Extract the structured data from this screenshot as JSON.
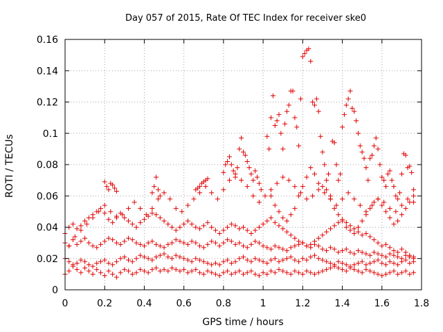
{
  "chart_data": {
    "type": "scatter",
    "title": "Day 057 of 2015, Rate Of TEC Index for receiver ske0",
    "xlabel": "GPS time / hours",
    "ylabel": "ROTI / TECUs",
    "xlim": [
      0,
      1.8
    ],
    "ylim": [
      0,
      0.16
    ],
    "x_ticks": [
      0,
      0.2,
      0.4,
      0.6,
      0.8,
      1,
      1.2,
      1.4,
      1.6,
      1.8
    ],
    "x_tick_labels": [
      "0",
      "0.2",
      "0.4",
      "0.6",
      "0.8",
      "1",
      "1.2",
      "1.4",
      "1.6",
      "1.8"
    ],
    "y_ticks": [
      0,
      0.02,
      0.04,
      0.06,
      0.08,
      0.1,
      0.12,
      0.14,
      0.16
    ],
    "y_tick_labels": [
      "0",
      "0.02",
      "0.04",
      "0.06",
      "0.08",
      "0.1",
      "0.12",
      "0.14",
      "0.16"
    ],
    "grid": true,
    "marker": "plus",
    "color": "#e00000",
    "series": [
      {
        "x": [
          0.0,
          0.02,
          0.04,
          0.06,
          0.08,
          0.1,
          0.12,
          0.14,
          0.16,
          0.18,
          0.2,
          0.22,
          0.24,
          0.26,
          0.28,
          0.3,
          0.32,
          0.34,
          0.36,
          0.38,
          0.4,
          0.42,
          0.44,
          0.46,
          0.48,
          0.5,
          0.52,
          0.54,
          0.56,
          0.58,
          0.6,
          0.62,
          0.64,
          0.66,
          0.68,
          0.7,
          0.72,
          0.74,
          0.76,
          0.78,
          0.8,
          0.82,
          0.84,
          0.86,
          0.88,
          0.9,
          0.92,
          0.94,
          0.96,
          0.98,
          1.0,
          1.02,
          1.04,
          1.06,
          1.08,
          1.1,
          1.12,
          1.14,
          1.16,
          1.18,
          1.2,
          1.22,
          1.24,
          1.26,
          1.28,
          1.3,
          1.32,
          1.34,
          1.36,
          1.38,
          1.4,
          1.42,
          1.44,
          1.46,
          1.48,
          1.5,
          1.52,
          1.54,
          1.56,
          1.58,
          1.6,
          1.62,
          1.64,
          1.66,
          1.68,
          1.7,
          1.72,
          1.74,
          1.76
        ],
        "y": [
          0.01,
          0.012,
          0.015,
          0.013,
          0.011,
          0.014,
          0.012,
          0.01,
          0.013,
          0.011,
          0.009,
          0.012,
          0.01,
          0.008,
          0.011,
          0.013,
          0.012,
          0.01,
          0.011,
          0.013,
          0.012,
          0.011,
          0.013,
          0.014,
          0.012,
          0.013,
          0.012,
          0.014,
          0.013,
          0.012,
          0.013,
          0.011,
          0.012,
          0.013,
          0.011,
          0.01,
          0.012,
          0.011,
          0.01,
          0.009,
          0.011,
          0.012,
          0.01,
          0.011,
          0.012,
          0.01,
          0.011,
          0.012,
          0.01,
          0.009,
          0.011,
          0.01,
          0.012,
          0.011,
          0.013,
          0.012,
          0.011,
          0.01,
          0.012,
          0.011,
          0.01,
          0.012,
          0.011,
          0.01,
          0.011,
          0.012,
          0.013,
          0.014,
          0.015,
          0.014,
          0.013,
          0.012,
          0.014,
          0.013,
          0.012,
          0.011,
          0.013,
          0.012,
          0.011,
          0.01,
          0.009,
          0.01,
          0.011,
          0.012,
          0.01,
          0.011,
          0.012,
          0.01,
          0.011
        ]
      },
      {
        "x": [
          0.0,
          0.02,
          0.04,
          0.06,
          0.08,
          0.1,
          0.12,
          0.14,
          0.16,
          0.18,
          0.2,
          0.22,
          0.24,
          0.26,
          0.28,
          0.3,
          0.32,
          0.34,
          0.36,
          0.38,
          0.4,
          0.42,
          0.44,
          0.46,
          0.48,
          0.5,
          0.52,
          0.54,
          0.56,
          0.58,
          0.6,
          0.62,
          0.64,
          0.66,
          0.68,
          0.7,
          0.72,
          0.74,
          0.76,
          0.78,
          0.8,
          0.82,
          0.84,
          0.86,
          0.88,
          0.9,
          0.92,
          0.94,
          0.96,
          0.98,
          1.0,
          1.02,
          1.04,
          1.06,
          1.08,
          1.1,
          1.12,
          1.14,
          1.16,
          1.18,
          1.2,
          1.22,
          1.24,
          1.26,
          1.28,
          1.3,
          1.32,
          1.34,
          1.36,
          1.38,
          1.4,
          1.42,
          1.44,
          1.46,
          1.48,
          1.5,
          1.52,
          1.54,
          1.56,
          1.58,
          1.6,
          1.62,
          1.64,
          1.66,
          1.68,
          1.7,
          1.72,
          1.74,
          1.76
        ],
        "y": [
          0.02,
          0.018,
          0.016,
          0.017,
          0.019,
          0.018,
          0.016,
          0.015,
          0.017,
          0.018,
          0.019,
          0.017,
          0.016,
          0.018,
          0.02,
          0.021,
          0.019,
          0.018,
          0.02,
          0.022,
          0.021,
          0.02,
          0.019,
          0.021,
          0.022,
          0.023,
          0.021,
          0.02,
          0.022,
          0.021,
          0.02,
          0.019,
          0.018,
          0.02,
          0.019,
          0.018,
          0.017,
          0.016,
          0.017,
          0.016,
          0.018,
          0.019,
          0.017,
          0.018,
          0.02,
          0.021,
          0.019,
          0.018,
          0.02,
          0.019,
          0.018,
          0.017,
          0.019,
          0.02,
          0.018,
          0.019,
          0.02,
          0.021,
          0.019,
          0.018,
          0.02,
          0.019,
          0.021,
          0.022,
          0.02,
          0.019,
          0.018,
          0.017,
          0.016,
          0.018,
          0.017,
          0.016,
          0.015,
          0.016,
          0.017,
          0.018,
          0.016,
          0.017,
          0.018,
          0.019,
          0.017,
          0.016,
          0.018,
          0.017,
          0.016,
          0.018,
          0.019,
          0.017,
          0.018
        ]
      },
      {
        "x": [
          0.0,
          0.02,
          0.04,
          0.06,
          0.08,
          0.1,
          0.12,
          0.14,
          0.16,
          0.18,
          0.2,
          0.22,
          0.24,
          0.26,
          0.28,
          0.3,
          0.32,
          0.34,
          0.36,
          0.38,
          0.4,
          0.42,
          0.44,
          0.46,
          0.48,
          0.5,
          0.52,
          0.54,
          0.56,
          0.58,
          0.6,
          0.62,
          0.64,
          0.66,
          0.68,
          0.7,
          0.72,
          0.74,
          0.76,
          0.78,
          0.8,
          0.82,
          0.84,
          0.86,
          0.88,
          0.9,
          0.92,
          0.94,
          0.96,
          0.98,
          1.0,
          1.02,
          1.04,
          1.06,
          1.08,
          1.1,
          1.12,
          1.14,
          1.16,
          1.18,
          1.2,
          1.22,
          1.24,
          1.26,
          1.28,
          1.3,
          1.32,
          1.34,
          1.36,
          1.38,
          1.4,
          1.42,
          1.44,
          1.46,
          1.48,
          1.5,
          1.52,
          1.54,
          1.56,
          1.58,
          1.6,
          1.62,
          1.64,
          1.66,
          1.68,
          1.7,
          1.72,
          1.74,
          1.76
        ],
        "y": [
          0.03,
          0.028,
          0.032,
          0.029,
          0.031,
          0.033,
          0.03,
          0.028,
          0.027,
          0.029,
          0.031,
          0.033,
          0.032,
          0.03,
          0.029,
          0.031,
          0.033,
          0.032,
          0.03,
          0.029,
          0.028,
          0.03,
          0.031,
          0.029,
          0.028,
          0.027,
          0.029,
          0.03,
          0.032,
          0.031,
          0.03,
          0.029,
          0.031,
          0.03,
          0.028,
          0.027,
          0.029,
          0.031,
          0.03,
          0.028,
          0.03,
          0.032,
          0.031,
          0.029,
          0.03,
          0.028,
          0.027,
          0.029,
          0.031,
          0.03,
          0.028,
          0.027,
          0.026,
          0.028,
          0.027,
          0.026,
          0.025,
          0.027,
          0.028,
          0.029,
          0.03,
          0.028,
          0.027,
          0.029,
          0.028,
          0.026,
          0.025,
          0.027,
          0.026,
          0.024,
          0.025,
          0.026,
          0.024,
          0.023,
          0.025,
          0.024,
          0.023,
          0.022,
          0.024,
          0.023,
          0.022,
          0.021,
          0.023,
          0.022,
          0.021,
          0.02,
          0.022,
          0.021,
          0.02
        ]
      },
      {
        "x": [
          0.0,
          0.02,
          0.04,
          0.06,
          0.08,
          0.1,
          0.12,
          0.14,
          0.16,
          0.18,
          0.2,
          0.22,
          0.24,
          0.26,
          0.28,
          0.3,
          0.32,
          0.34,
          0.36,
          0.38,
          0.4,
          0.42,
          0.44,
          0.46,
          0.48,
          0.5,
          0.52,
          0.54,
          0.56,
          0.58,
          0.6,
          0.62,
          0.64,
          0.66,
          0.68,
          0.7,
          0.72,
          0.74,
          0.76,
          0.78,
          0.8,
          0.82,
          0.84,
          0.86,
          0.88,
          0.9,
          0.92,
          0.94,
          0.96,
          0.98,
          1.0,
          1.02,
          1.04,
          1.06,
          1.08,
          1.1,
          1.12,
          1.14,
          1.16,
          1.18,
          1.2,
          1.22,
          1.24,
          1.26,
          1.28,
          1.3,
          1.32,
          1.34,
          1.36,
          1.38,
          1.4,
          1.42,
          1.44,
          1.46,
          1.48,
          1.5,
          1.52,
          1.54,
          1.56,
          1.58,
          1.6,
          1.62,
          1.64,
          1.66,
          1.68,
          1.7,
          1.72,
          1.74,
          1.76
        ],
        "y": [
          0.036,
          0.04,
          0.042,
          0.039,
          0.041,
          0.044,
          0.046,
          0.048,
          0.05,
          0.052,
          0.049,
          0.045,
          0.043,
          0.047,
          0.049,
          0.046,
          0.044,
          0.042,
          0.04,
          0.043,
          0.045,
          0.047,
          0.049,
          0.048,
          0.046,
          0.044,
          0.042,
          0.04,
          0.038,
          0.04,
          0.042,
          0.044,
          0.042,
          0.04,
          0.039,
          0.041,
          0.043,
          0.04,
          0.038,
          0.036,
          0.038,
          0.04,
          0.042,
          0.041,
          0.039,
          0.04,
          0.038,
          0.036,
          0.038,
          0.04,
          0.042,
          0.044,
          0.046,
          0.043,
          0.041,
          0.039,
          0.037,
          0.035,
          0.033,
          0.031,
          0.03,
          0.028,
          0.029,
          0.031,
          0.033,
          0.035,
          0.037,
          0.039,
          0.041,
          0.043,
          0.045,
          0.043,
          0.041,
          0.039,
          0.037,
          0.035,
          0.036,
          0.034,
          0.032,
          0.03,
          0.028,
          0.029,
          0.027,
          0.025,
          0.024,
          0.026,
          0.024,
          0.022,
          0.021
        ]
      },
      {
        "x": [
          0.02,
          0.05,
          0.08,
          0.11,
          0.14,
          0.17,
          0.2,
          0.23,
          0.26,
          0.29,
          0.32,
          0.35,
          0.38,
          0.41,
          0.44,
          0.47,
          0.5,
          0.53,
          0.56,
          0.59,
          0.62,
          0.65,
          0.68,
          0.71,
          0.74,
          0.77,
          0.8,
          0.83,
          0.86,
          0.89,
          0.92,
          0.95,
          0.98,
          1.01,
          1.04,
          1.07,
          1.1,
          1.13,
          1.16,
          1.19,
          1.22,
          1.25,
          1.28,
          1.31,
          1.34,
          1.37,
          1.4,
          1.43,
          1.46,
          1.49,
          1.52,
          1.55,
          1.58,
          1.61,
          1.64,
          1.67,
          1.7,
          1.73,
          1.76
        ],
        "y": [
          0.028,
          0.034,
          0.038,
          0.042,
          0.046,
          0.05,
          0.054,
          0.05,
          0.046,
          0.048,
          0.052,
          0.056,
          0.052,
          0.048,
          0.052,
          0.058,
          0.062,
          0.058,
          0.052,
          0.05,
          0.054,
          0.058,
          0.062,
          0.066,
          0.062,
          0.058,
          0.064,
          0.07,
          0.074,
          0.07,
          0.066,
          0.06,
          0.056,
          0.06,
          0.064,
          0.068,
          0.072,
          0.07,
          0.066,
          0.062,
          0.058,
          0.06,
          0.064,
          0.062,
          0.058,
          0.054,
          0.058,
          0.062,
          0.058,
          0.054,
          0.05,
          0.054,
          0.058,
          0.056,
          0.052,
          0.05,
          0.054,
          0.058,
          0.056
        ]
      },
      {
        "x": [
          0.2,
          0.21,
          0.22,
          0.23,
          0.24,
          0.25,
          0.26,
          0.44,
          0.45,
          0.46,
          0.47,
          0.48,
          0.66,
          0.67,
          0.68,
          0.69,
          0.7,
          0.71,
          0.72,
          0.8,
          0.81,
          0.82,
          0.83,
          0.84,
          0.85,
          0.86,
          0.87,
          0.88,
          0.89,
          0.9,
          0.91,
          0.92,
          0.93,
          0.94,
          0.95,
          0.96,
          0.97,
          0.98,
          0.99
        ],
        "y": [
          0.069,
          0.066,
          0.064,
          0.068,
          0.067,
          0.065,
          0.063,
          0.062,
          0.066,
          0.072,
          0.064,
          0.06,
          0.064,
          0.065,
          0.066,
          0.068,
          0.069,
          0.07,
          0.071,
          0.075,
          0.08,
          0.082,
          0.085,
          0.08,
          0.076,
          0.072,
          0.078,
          0.09,
          0.097,
          0.088,
          0.086,
          0.082,
          0.078,
          0.074,
          0.07,
          0.076,
          0.072,
          0.068,
          0.064
        ]
      },
      {
        "x": [
          1.02,
          1.03,
          1.04,
          1.05,
          1.06,
          1.07,
          1.08,
          1.09,
          1.1,
          1.11,
          1.12,
          1.13,
          1.14,
          1.15,
          1.16,
          1.17,
          1.18,
          1.19,
          1.2,
          1.21,
          1.22,
          1.23,
          1.24,
          1.25,
          1.26,
          1.27,
          1.28,
          1.29,
          1.3,
          1.31,
          1.32,
          1.33,
          1.34,
          1.35,
          1.36,
          1.37,
          1.38,
          1.39,
          1.4,
          1.41,
          1.42,
          1.43,
          1.44,
          1.45,
          1.46,
          1.47,
          1.48,
          1.49,
          1.5,
          1.51,
          1.52,
          1.53,
          1.54,
          1.55,
          1.56,
          1.57,
          1.58,
          1.59,
          1.6,
          1.61,
          1.62,
          1.63,
          1.64,
          1.65,
          1.66,
          1.67,
          1.68,
          1.69,
          1.7,
          1.71,
          1.72,
          1.73,
          1.74,
          1.75,
          1.76
        ],
        "y": [
          0.098,
          0.09,
          0.11,
          0.124,
          0.105,
          0.108,
          0.112,
          0.1,
          0.09,
          0.106,
          0.114,
          0.118,
          0.127,
          0.127,
          0.11,
          0.104,
          0.092,
          0.122,
          0.149,
          0.151,
          0.153,
          0.154,
          0.146,
          0.12,
          0.118,
          0.122,
          0.114,
          0.098,
          0.088,
          0.08,
          0.07,
          0.074,
          0.06,
          0.095,
          0.094,
          0.08,
          0.07,
          0.074,
          0.104,
          0.112,
          0.118,
          0.122,
          0.127,
          0.116,
          0.114,
          0.108,
          0.1,
          0.092,
          0.088,
          0.084,
          0.078,
          0.07,
          0.084,
          0.086,
          0.092,
          0.097,
          0.09,
          0.08,
          0.072,
          0.07,
          0.066,
          0.074,
          0.076,
          0.07,
          0.066,
          0.06,
          0.058,
          0.062,
          0.074,
          0.087,
          0.086,
          0.078,
          0.079,
          0.075,
          0.064
        ]
      },
      {
        "x": [
          1.04,
          1.06,
          1.08,
          1.1,
          1.12,
          1.14,
          1.16,
          1.18,
          1.2,
          1.22,
          1.24,
          1.26,
          1.28,
          1.3,
          1.32,
          1.34,
          1.36,
          1.38,
          1.4,
          1.42,
          1.44,
          1.46,
          1.48,
          1.5,
          1.52,
          1.54,
          1.56,
          1.58,
          1.6,
          1.62,
          1.64,
          1.66,
          1.68,
          1.7,
          1.72,
          1.74,
          1.76
        ],
        "y": [
          0.06,
          0.054,
          0.05,
          0.046,
          0.044,
          0.048,
          0.052,
          0.06,
          0.066,
          0.072,
          0.078,
          0.074,
          0.068,
          0.066,
          0.064,
          0.058,
          0.052,
          0.048,
          0.044,
          0.04,
          0.038,
          0.036,
          0.04,
          0.044,
          0.048,
          0.052,
          0.056,
          0.058,
          0.054,
          0.05,
          0.046,
          0.042,
          0.044,
          0.048,
          0.052,
          0.056,
          0.06
        ]
      }
    ]
  }
}
